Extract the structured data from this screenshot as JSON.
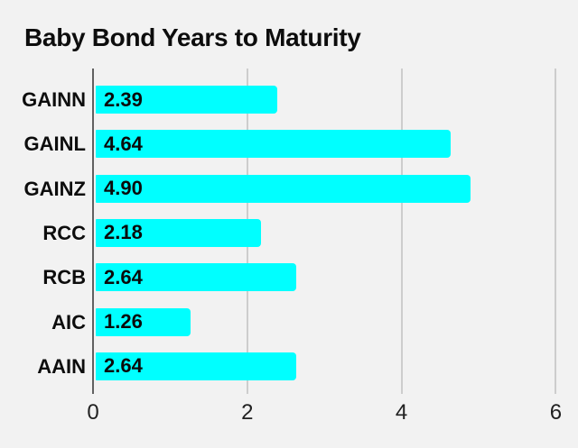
{
  "chart_data": {
    "type": "bar",
    "orientation": "horizontal",
    "title": "Baby Bond Years to Maturity",
    "categories": [
      "GAINN",
      "GAINL",
      "GAINZ",
      "RCC",
      "RCB",
      "AIC",
      "AAIN"
    ],
    "values": [
      2.39,
      4.64,
      4.9,
      2.18,
      2.64,
      1.26,
      2.64
    ],
    "value_labels": [
      "2.39",
      "4.64",
      "4.90",
      "2.18",
      "2.64",
      "1.26",
      "2.64"
    ],
    "xlabel": "",
    "ylabel": "",
    "xlim": [
      0,
      6
    ],
    "x_ticks": [
      "0",
      "2",
      "4",
      "6"
    ],
    "grid": true,
    "legend": "none",
    "bar_color": "#00ffff",
    "background_color": "#f2f2f2",
    "axis_color": "#616161",
    "gridline_color": "#cdcdcd",
    "label_color": "#0d0d0d"
  }
}
